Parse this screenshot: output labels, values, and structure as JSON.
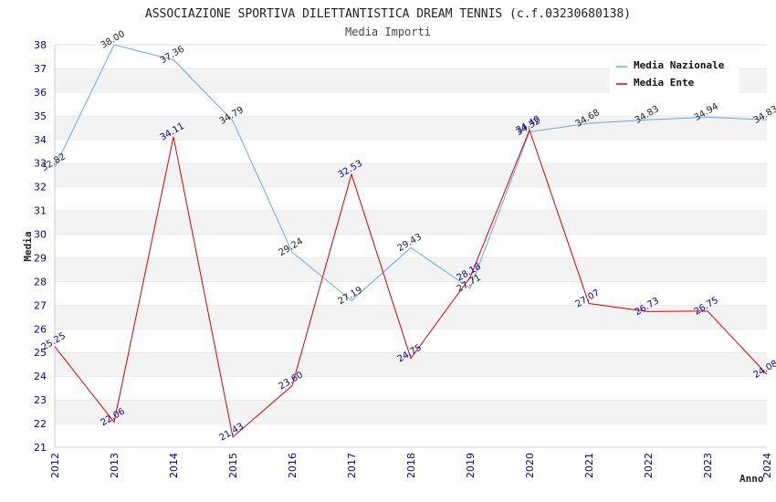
{
  "chart_data": {
    "type": "line",
    "title": "ASSOCIAZIONE SPORTIVA DILETTANTISTICA DREAM TENNIS (c.f.03230680138)",
    "subtitle": "Media Importi",
    "xlabel": "Anno",
    "ylabel": "Media",
    "ylim": [
      21,
      38
    ],
    "yticks": [
      "21",
      "22",
      "23",
      "24",
      "25",
      "26",
      "27",
      "28",
      "29",
      "30",
      "31",
      "32",
      "33",
      "34",
      "35",
      "36",
      "37",
      "38"
    ],
    "categories": [
      "2012",
      "2013",
      "2014",
      "2015",
      "2016",
      "2017",
      "2018",
      "2019",
      "2020",
      "2021",
      "2022",
      "2023",
      "2024"
    ],
    "series": [
      {
        "name": "Media Nazionale",
        "color": "#66aaee",
        "values": [
          32.82,
          38.0,
          37.36,
          34.79,
          29.24,
          27.19,
          29.43,
          27.71,
          34.32,
          34.68,
          34.83,
          34.94,
          34.83
        ],
        "labels": [
          "32.82",
          "38.00",
          "37.36",
          "34.79",
          "29.24",
          "27.19",
          "29.43",
          "27.71",
          "34.32",
          "34.68",
          "34.83",
          "34.94",
          "34.83"
        ]
      },
      {
        "name": "Media Ente",
        "color": "#dd0000",
        "values": [
          25.25,
          22.06,
          34.11,
          21.43,
          23.6,
          32.53,
          24.75,
          28.18,
          34.4,
          27.07,
          26.73,
          26.75,
          24.08
        ],
        "labels": [
          "25.25",
          "22.06",
          "34.11",
          "21.43",
          "23.60",
          "32.53",
          "24.75",
          "28.18",
          "34.40",
          "27.07",
          "26.73",
          "26.75",
          "24.08"
        ]
      }
    ],
    "legend": "top-right",
    "grid": true
  }
}
